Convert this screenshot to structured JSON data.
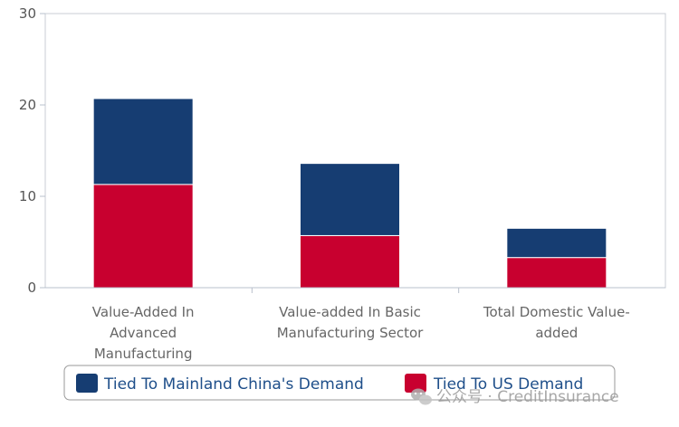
{
  "chart_data": {
    "type": "bar",
    "stacked": true,
    "categories": [
      [
        "Value-Added In",
        "Advanced",
        "Manufacturing"
      ],
      [
        "Value-added In Basic",
        "Manufacturing Sector"
      ],
      [
        "Total Domestic Value-",
        "added"
      ]
    ],
    "series": [
      {
        "name": "Tied To US Demand",
        "color": "#c8002f",
        "values": [
          11.3,
          5.7,
          3.3
        ]
      },
      {
        "name": "Tied To Mainland China's Demand",
        "color": "#163d72",
        "values": [
          9.4,
          7.9,
          3.2
        ]
      }
    ],
    "yticks": [
      0,
      10,
      20,
      30
    ],
    "ylim": [
      0,
      30
    ],
    "title": "",
    "xlabel": "",
    "ylabel": "",
    "grid": false,
    "legend": {
      "placement": "bottom-center",
      "entries": [
        "Tied To Mainland China's Demand",
        "Tied To US Demand"
      ],
      "colors": [
        "#163d72",
        "#c8002f"
      ]
    }
  },
  "watermark": {
    "text": "公众号 · CreditInsurance",
    "icon": "wechat-icon"
  }
}
